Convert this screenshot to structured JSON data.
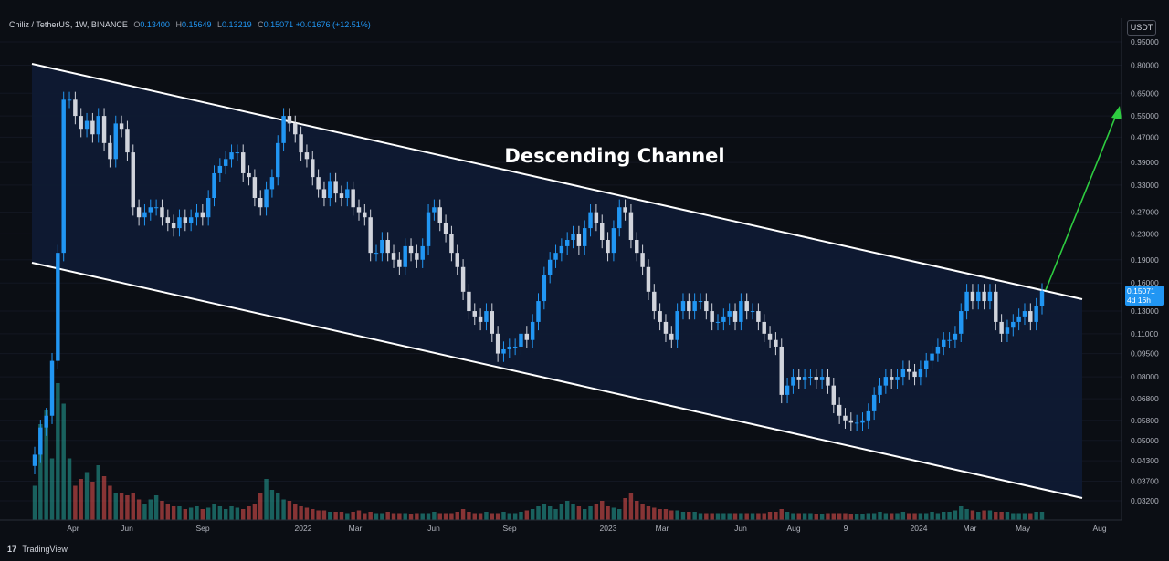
{
  "header": {
    "symbol": "Chiliz / TetherUS, 1W, BINANCE",
    "o_label": "O",
    "o_value": "0.13400",
    "h_label": "H",
    "h_value": "0.15649",
    "l_label": "L",
    "l_value": "0.13219",
    "c_label": "C",
    "c_value": "0.15071",
    "change": "+0.01676 (+12.51%)"
  },
  "currency_button": "USDT",
  "price_tag": {
    "value": "0.15071",
    "countdown": "4d 16h"
  },
  "footer": {
    "brand": "TradingView",
    "logo": "17"
  },
  "colors": {
    "up": "#2196f3",
    "down": "#d1d4dc",
    "vol_up": "#26a69a",
    "vol_down": "#ef5350",
    "channel_fill": "#0f1a33",
    "channel_line": "#ffffff",
    "arrow": "#2ecc40"
  },
  "chart_data": {
    "type": "candlestick",
    "title": "Descending Channel",
    "y_scale": "log",
    "y_ticks": [
      "0.95000",
      "0.80000",
      "0.65000",
      "0.55000",
      "0.47000",
      "0.39000",
      "0.33000",
      "0.27000",
      "0.23000",
      "0.19000",
      "0.16000",
      "0.13000",
      "0.11000",
      "0.09500",
      "0.08000",
      "0.06800",
      "0.05800",
      "0.05000",
      "0.04300",
      "0.03700",
      "0.03200"
    ],
    "x_ticks": [
      "Apr",
      "Jun",
      "Sep",
      "2022",
      "Mar",
      "Jun",
      "Sep",
      "2023",
      "Mar",
      "Jun",
      "Aug",
      "9",
      "2024",
      "Mar",
      "May",
      "Aug"
    ],
    "closes": [
      0.045,
      0.055,
      0.06,
      0.09,
      0.2,
      0.62,
      0.62,
      0.55,
      0.5,
      0.53,
      0.48,
      0.55,
      0.45,
      0.4,
      0.52,
      0.5,
      0.42,
      0.28,
      0.26,
      0.27,
      0.28,
      0.28,
      0.26,
      0.25,
      0.24,
      0.26,
      0.25,
      0.26,
      0.27,
      0.26,
      0.3,
      0.36,
      0.38,
      0.4,
      0.42,
      0.42,
      0.36,
      0.35,
      0.3,
      0.28,
      0.32,
      0.35,
      0.45,
      0.55,
      0.52,
      0.48,
      0.42,
      0.4,
      0.35,
      0.32,
      0.3,
      0.34,
      0.31,
      0.3,
      0.32,
      0.28,
      0.27,
      0.26,
      0.2,
      0.2,
      0.22,
      0.2,
      0.19,
      0.18,
      0.21,
      0.2,
      0.19,
      0.21,
      0.27,
      0.28,
      0.25,
      0.23,
      0.2,
      0.18,
      0.15,
      0.13,
      0.125,
      0.12,
      0.13,
      0.11,
      0.095,
      0.098,
      0.1,
      0.1,
      0.11,
      0.105,
      0.12,
      0.14,
      0.17,
      0.19,
      0.2,
      0.21,
      0.22,
      0.23,
      0.21,
      0.24,
      0.27,
      0.25,
      0.22,
      0.2,
      0.24,
      0.28,
      0.27,
      0.22,
      0.2,
      0.18,
      0.15,
      0.13,
      0.12,
      0.11,
      0.105,
      0.13,
      0.14,
      0.13,
      0.14,
      0.14,
      0.13,
      0.12,
      0.12,
      0.125,
      0.13,
      0.12,
      0.14,
      0.13,
      0.13,
      0.12,
      0.11,
      0.105,
      0.1,
      0.07,
      0.075,
      0.08,
      0.078,
      0.08,
      0.08,
      0.078,
      0.08,
      0.075,
      0.065,
      0.06,
      0.058,
      0.057,
      0.057,
      0.058,
      0.062,
      0.07,
      0.075,
      0.08,
      0.078,
      0.08,
      0.085,
      0.083,
      0.08,
      0.085,
      0.09,
      0.095,
      0.1,
      0.105,
      0.105,
      0.11,
      0.13,
      0.15,
      0.14,
      0.15,
      0.14,
      0.15,
      0.12,
      0.11,
      0.115,
      0.12,
      0.125,
      0.13,
      0.12,
      0.135,
      0.15071
    ],
    "volumes": [
      0.25,
      0.7,
      0.8,
      0.45,
      1.0,
      0.85,
      0.45,
      0.25,
      0.3,
      0.35,
      0.28,
      0.4,
      0.32,
      0.25,
      0.2,
      0.2,
      0.18,
      0.2,
      0.15,
      0.12,
      0.15,
      0.18,
      0.14,
      0.12,
      0.1,
      0.1,
      0.08,
      0.09,
      0.1,
      0.08,
      0.09,
      0.12,
      0.1,
      0.08,
      0.1,
      0.09,
      0.08,
      0.1,
      0.12,
      0.2,
      0.3,
      0.22,
      0.2,
      0.15,
      0.14,
      0.12,
      0.1,
      0.09,
      0.08,
      0.07,
      0.07,
      0.06,
      0.06,
      0.06,
      0.05,
      0.06,
      0.07,
      0.05,
      0.06,
      0.05,
      0.05,
      0.06,
      0.05,
      0.05,
      0.05,
      0.04,
      0.05,
      0.05,
      0.05,
      0.06,
      0.05,
      0.05,
      0.05,
      0.06,
      0.08,
      0.06,
      0.05,
      0.05,
      0.06,
      0.05,
      0.05,
      0.06,
      0.05,
      0.05,
      0.06,
      0.07,
      0.08,
      0.1,
      0.12,
      0.1,
      0.08,
      0.12,
      0.14,
      0.12,
      0.1,
      0.08,
      0.1,
      0.12,
      0.14,
      0.1,
      0.09,
      0.08,
      0.16,
      0.2,
      0.14,
      0.12,
      0.1,
      0.09,
      0.08,
      0.08,
      0.07,
      0.07,
      0.06,
      0.06,
      0.06,
      0.05,
      0.05,
      0.05,
      0.05,
      0.05,
      0.05,
      0.05,
      0.05,
      0.05,
      0.05,
      0.05,
      0.05,
      0.06,
      0.06,
      0.08,
      0.06,
      0.05,
      0.05,
      0.05,
      0.05,
      0.04,
      0.04,
      0.05,
      0.05,
      0.05,
      0.05,
      0.04,
      0.04,
      0.04,
      0.05,
      0.05,
      0.06,
      0.05,
      0.05,
      0.05,
      0.06,
      0.05,
      0.05,
      0.05,
      0.05,
      0.06,
      0.05,
      0.06,
      0.06,
      0.07,
      0.1,
      0.08,
      0.07,
      0.06,
      0.07,
      0.07,
      0.06,
      0.06,
      0.06,
      0.05,
      0.05,
      0.05,
      0.05,
      0.06,
      0.06
    ]
  }
}
